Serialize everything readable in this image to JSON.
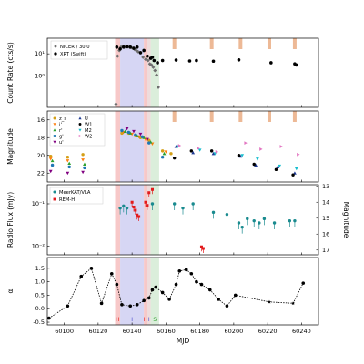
{
  "chart_data": [
    {
      "panel": "count-rate",
      "type": "scatter",
      "ylabel": "Count Rate (cts/s)",
      "yscale": "log",
      "ylim_log10": [
        -1.4,
        1.7
      ],
      "yticks": [
        {
          "v": 1,
          "label": "10¹"
        },
        {
          "v": 0,
          "label": "10⁰"
        }
      ],
      "legend": [
        "NICER / 30.0",
        "XRT (Swift)"
      ],
      "series": [
        {
          "name": "NICER / 30.0",
          "marker": "diamond",
          "color": "#6e6e6e",
          "x": [
            60130.5,
            60131.5,
            60132.5,
            60133.5,
            60134.5,
            60135.5,
            60136.5,
            60137.5,
            60138.5,
            60139.5,
            60140.5,
            60141.5,
            60142.5,
            60143.5,
            60145,
            60146.5,
            60148,
            60149.5,
            60150.5,
            60151.5,
            60152.5,
            60153.5,
            60154.5,
            60155.5
          ],
          "y": [
            -1.25,
            0.9,
            1.15,
            1.3,
            1.32,
            1.3,
            1.33,
            1.32,
            1.3,
            1.28,
            1.25,
            1.2,
            1.15,
            1.1,
            1.05,
            0.85,
            0.75,
            0.7,
            0.55,
            0.5,
            0.4,
            0.25,
            0.05,
            -0.5
          ]
        },
        {
          "name": "XRT (Swift)",
          "marker": "circle",
          "color": "#000000",
          "x": [
            60131,
            60133,
            60135,
            60137,
            60139,
            60141,
            60143,
            60145,
            60147,
            60149,
            60151,
            60152,
            60153,
            60155,
            60158,
            60166,
            60174,
            60178,
            60188,
            60203,
            60222,
            60236,
            60237
          ],
          "y": [
            1.3,
            1.22,
            1.3,
            1.32,
            1.3,
            1.25,
            1.3,
            1.05,
            1.15,
            0.9,
            0.8,
            0.85,
            0.7,
            0.6,
            0.7,
            0.72,
            0.68,
            0.7,
            0.67,
            0.73,
            0.6,
            0.55,
            0.5
          ]
        }
      ]
    },
    {
      "panel": "optical-magnitude",
      "type": "scatter",
      "ylabel": "Magnitude",
      "ylim": [
        23,
        15
      ],
      "yticks": [
        16,
        18,
        20,
        22
      ],
      "yaxis_inverted": true,
      "legend": [
        "z_s",
        "i'",
        "r'",
        "g'",
        "u'",
        "U",
        "W1",
        "M2",
        "W2"
      ],
      "series": [
        {
          "name": "z_s",
          "marker": "circle",
          "color": "#d4a017",
          "x": [
            60092,
            60102,
            60111,
            60134,
            60138,
            60142,
            60145,
            60150,
            60158,
            60163
          ],
          "y": [
            20.1,
            20.2,
            19.9,
            17.5,
            17.5,
            17.8,
            18.0,
            18.3,
            19.5,
            19.8
          ]
        },
        {
          "name": "i'",
          "marker": "triangle-down",
          "color": "#ff7f0e",
          "x": [
            60092,
            60102,
            60111,
            60135,
            60140,
            60144,
            60148,
            60152,
            60160
          ],
          "y": [
            20.4,
            20.6,
            20.5,
            17.4,
            17.6,
            17.9,
            18.2,
            18.7,
            19.6
          ]
        },
        {
          "name": "r'",
          "marker": "triangle-up",
          "color": "#2ca02c",
          "x": [
            60093,
            60103,
            60112,
            60136,
            60139,
            60143,
            60147,
            60151,
            60159
          ],
          "y": [
            20.6,
            20.9,
            21.0,
            17.3,
            17.5,
            17.8,
            18.0,
            18.5,
            19.8
          ]
        },
        {
          "name": "g'",
          "marker": "circle",
          "color": "#1f77b4",
          "x": [
            60093,
            60103,
            60112,
            60134,
            60138,
            60142,
            60146,
            60150,
            60158
          ],
          "y": [
            21.1,
            21.3,
            21.4,
            17.2,
            17.4,
            17.7,
            17.9,
            18.6,
            20.2
          ]
        },
        {
          "name": "u'",
          "marker": "triangle-down",
          "color": "#800080",
          "x": [
            60092,
            60102,
            60111,
            60137,
            60141,
            60145,
            60149
          ],
          "y": [
            21.8,
            22.0,
            21.9,
            17.0,
            17.3,
            17.6,
            18.2
          ]
        },
        {
          "name": "U",
          "marker": "triangle-up",
          "color": "#1f3a93",
          "x": [
            60166,
            60176,
            60188,
            60204,
            60213,
            60226,
            60236
          ],
          "y": [
            19.0,
            19.7,
            19.8,
            20.1,
            21.1,
            21.3,
            22.0
          ]
        },
        {
          "name": "W1",
          "marker": "circle",
          "color": "#000000",
          "x": [
            60165,
            60175,
            60187,
            60203,
            60212,
            60225,
            60235
          ],
          "y": [
            20.3,
            19.5,
            19.5,
            20.0,
            21.0,
            21.6,
            22.2
          ]
        },
        {
          "name": "M2",
          "marker": "triangle-down",
          "color": "#17becf",
          "x": [
            60167,
            60180,
            60189,
            60205,
            60214,
            60227,
            60237
          ],
          "y": [
            19.0,
            19.4,
            19.8,
            20.0,
            20.4,
            21.2,
            21.5
          ]
        },
        {
          "name": "W2",
          "marker": "triangle-right",
          "color": "#e377c2",
          "x": [
            60168,
            60179,
            60190,
            60207,
            60216,
            60228,
            60238
          ],
          "y": [
            18.9,
            19.2,
            19.6,
            18.6,
            19.3,
            19.0,
            19.9
          ]
        }
      ]
    },
    {
      "panel": "radio",
      "type": "scatter",
      "ylabel": "Radio Flux (mJy)",
      "ylabel_right": "Magnitude",
      "yscale": "log",
      "ylim_log10": [
        -2.2,
        -0.55
      ],
      "yticks": [
        {
          "v": -1,
          "label": "10⁻¹"
        },
        {
          "v": -2,
          "label": "10⁻²"
        }
      ],
      "yticks_right": [
        13,
        14,
        15,
        16,
        17
      ],
      "ylim_right": [
        17.3,
        12.9
      ],
      "legend": [
        "MeerKAT/VLA",
        "REM-H"
      ],
      "series": [
        {
          "name": "MeerKAT/VLA",
          "marker": "circle",
          "color": "#1a8b8f",
          "axis": "left",
          "x": [
            60133,
            60135,
            60137,
            60152,
            60165,
            60170,
            60176,
            60188,
            60196,
            60203,
            60205,
            60208,
            60212,
            60215,
            60218,
            60224,
            60233,
            60236
          ],
          "y": [
            -1.1,
            -1.05,
            -1.1,
            -1.0,
            -1.0,
            -1.1,
            -1.0,
            -1.2,
            -1.25,
            -1.45,
            -1.55,
            -1.35,
            -1.4,
            -1.45,
            -1.35,
            -1.45,
            -1.4,
            -1.4
          ]
        },
        {
          "name": "REM-H",
          "marker": "square",
          "color": "#e31a1c",
          "axis": "right",
          "x": [
            60140,
            60141,
            60142,
            60143,
            60144,
            60148,
            60149,
            60150,
            60152,
            60181,
            60182
          ],
          "y": [
            14.0,
            14.3,
            14.5,
            14.8,
            14.9,
            14.0,
            14.2,
            13.4,
            13.2,
            16.8,
            16.9
          ]
        }
      ]
    },
    {
      "panel": "alpha",
      "type": "line",
      "ylabel": "α",
      "xlabel": "MJD",
      "ylim": [
        -0.6,
        1.9
      ],
      "yticks": [
        -0.5,
        0.0,
        0.5,
        1.0,
        1.5
      ],
      "xticks": [
        60100,
        60120,
        60140,
        60160,
        60180,
        60200,
        60220,
        60240
      ],
      "xlim": [
        60090,
        60250
      ],
      "x": [
        60091,
        60102,
        60110,
        60116,
        60122,
        60128,
        60131,
        60134,
        60139,
        60143,
        60147,
        60150,
        60152,
        60154,
        60158,
        60162,
        60166,
        60168,
        60172,
        60175,
        60178,
        60181,
        60186,
        60191,
        60196,
        60201,
        60221,
        60235,
        60241
      ],
      "y": [
        -0.35,
        0.1,
        1.2,
        1.5,
        0.2,
        1.3,
        0.9,
        0.15,
        0.1,
        0.15,
        0.3,
        0.4,
        0.7,
        0.8,
        0.6,
        0.35,
        0.9,
        1.4,
        1.45,
        1.3,
        1.0,
        0.9,
        0.7,
        0.35,
        0.1,
        0.5,
        0.25,
        0.2,
        0.95
      ],
      "star_markers_x": [
        60220,
        60236
      ]
    }
  ],
  "bands": [
    {
      "label": "H",
      "x0": 60130,
      "x1": 60133,
      "color": "#f4b6b6"
    },
    {
      "label": "I",
      "x0": 60133,
      "x1": 60147,
      "color": "#c8c8f0"
    },
    {
      "label": "H",
      "x0": 60147,
      "x1": 60149,
      "color": "#f4b6b6"
    },
    {
      "label": "I",
      "x0": 60149,
      "x1": 60151,
      "color": "#e8d0d0"
    },
    {
      "label": "S",
      "x0": 60151,
      "x1": 60156,
      "color": "#cfe8cf"
    }
  ],
  "orange_epochs_x": [
    60165,
    60187,
    60204,
    60221,
    60236
  ],
  "band_label_color_H": "#e31a1c",
  "band_label_color_I": "#4a4ad0",
  "band_label_color_S": "#2ca02c"
}
